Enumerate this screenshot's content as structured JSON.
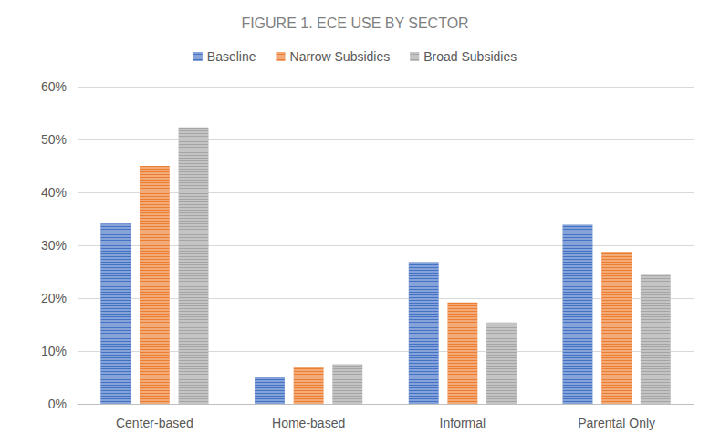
{
  "chart_data": {
    "type": "bar",
    "title": "FIGURE 1. ECE USE BY SECTOR",
    "categories": [
      "Center-based",
      "Home-based",
      "Informal",
      "Parental Only"
    ],
    "series": [
      {
        "name": "Baseline",
        "color": "#4472c4",
        "values": [
          34.1,
          5.0,
          26.8,
          33.9
        ]
      },
      {
        "name": "Narrow Subsidies",
        "color": "#ed7d31",
        "values": [
          45.0,
          7.0,
          19.2,
          28.8
        ]
      },
      {
        "name": "Broad Subsidies",
        "color": "#a5a5a5",
        "values": [
          52.3,
          7.5,
          15.4,
          24.4
        ]
      }
    ],
    "ylim": [
      0,
      60
    ],
    "yticks": [
      {
        "value": 0,
        "label": "0%"
      },
      {
        "value": 10,
        "label": "10%"
      },
      {
        "value": 20,
        "label": "20%"
      },
      {
        "value": 30,
        "label": "30%"
      },
      {
        "value": 40,
        "label": "40%"
      },
      {
        "value": 50,
        "label": "50%"
      },
      {
        "value": 60,
        "label": "60%"
      }
    ],
    "grid": true,
    "legend": "top"
  }
}
